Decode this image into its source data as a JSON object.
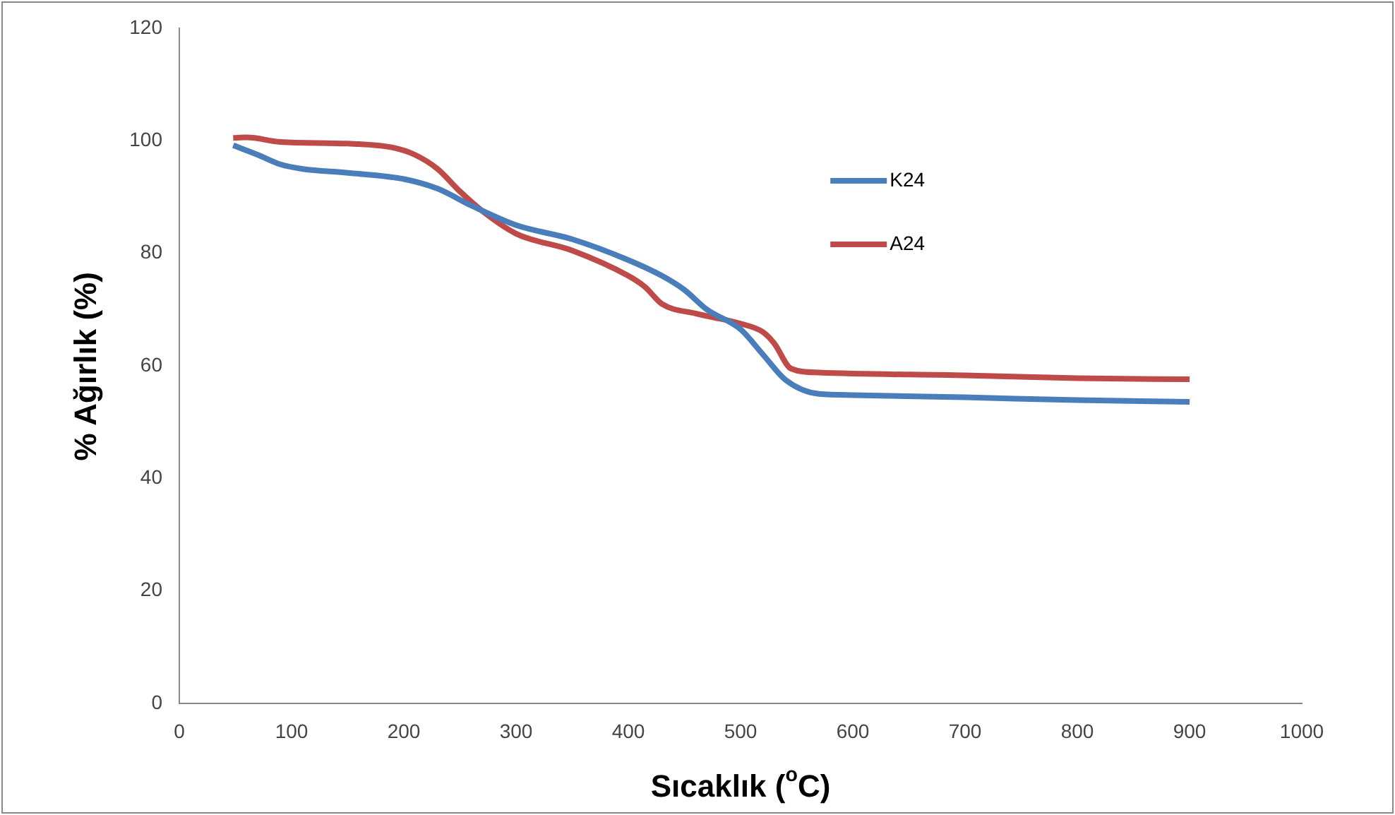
{
  "chart_data": {
    "type": "line",
    "xlabel": "Sıcaklık ($^{o}$C)",
    "ylabel": "% Ağırlık (%)",
    "xlim": [
      0,
      1000
    ],
    "xticks": [
      0,
      100,
      200,
      300,
      400,
      500,
      600,
      700,
      800,
      900,
      1000
    ],
    "ylim": [
      0,
      120
    ],
    "yticks": [
      0,
      20,
      40,
      60,
      80,
      100,
      120
    ],
    "grid": false,
    "legend": "top right",
    "marker": "none",
    "line_style": "solid",
    "series": [
      {
        "name": "K24",
        "color": "#4a7ebb",
        "x": [
          48,
          70,
          90,
          110,
          150,
          200,
          230,
          260,
          300,
          350,
          400,
          430,
          450,
          470,
          500,
          520,
          540,
          570,
          600,
          700,
          800,
          900
        ],
        "values": [
          99.2,
          97.5,
          95.8,
          95,
          94.3,
          93.2,
          91.5,
          88.5,
          85,
          82.5,
          78.8,
          76,
          73.5,
          70,
          66.5,
          62,
          57.5,
          55,
          54.8,
          54.4,
          53.9,
          53.6
        ]
      },
      {
        "name": "A24",
        "color": "#be4b48",
        "x": [
          48,
          60,
          90,
          150,
          190,
          210,
          230,
          250,
          270,
          300,
          350,
          400,
          415,
          430,
          460,
          500,
          520,
          530,
          545,
          570,
          700,
          800,
          900
        ],
        "values": [
          100.5,
          100.6,
          99.8,
          99.5,
          98.8,
          97.5,
          95,
          91,
          87.5,
          83.5,
          80.5,
          76,
          74,
          71,
          69.3,
          67.5,
          66,
          64,
          59.5,
          58.8,
          58.3,
          57.8,
          57.6
        ]
      }
    ]
  }
}
